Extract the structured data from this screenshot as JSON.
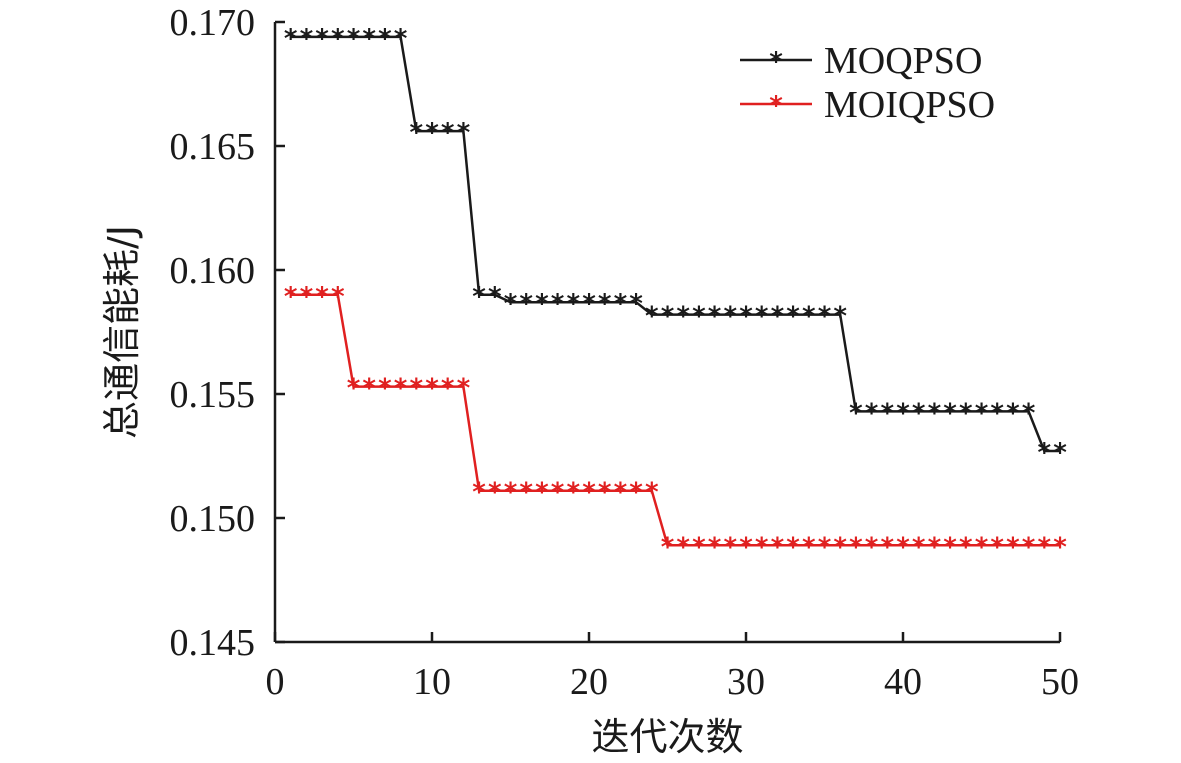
{
  "chart_data": {
    "type": "line",
    "xlabel": "迭代次数",
    "ylabel": "总通信能耗/J",
    "xlim": [
      0,
      50
    ],
    "ylim": [
      0.145,
      0.17
    ],
    "xticks": [
      "0",
      "10",
      "20",
      "30",
      "40",
      "50"
    ],
    "yticks": [
      "0.145",
      "0.150",
      "0.155",
      "0.160",
      "0.165",
      "0.170"
    ],
    "legend_position": "top-right",
    "x": [
      1,
      2,
      3,
      4,
      5,
      6,
      7,
      8,
      9,
      10,
      11,
      12,
      13,
      14,
      15,
      16,
      17,
      18,
      19,
      20,
      21,
      22,
      23,
      24,
      25,
      26,
      27,
      28,
      29,
      30,
      31,
      32,
      33,
      34,
      35,
      36,
      37,
      38,
      39,
      40,
      41,
      42,
      43,
      44,
      45,
      46,
      47,
      48,
      49,
      50
    ],
    "series": [
      {
        "name": "MOQPSO",
        "color": "#1a1a1a",
        "values": [
          0.1694,
          0.1694,
          0.1694,
          0.1694,
          0.1694,
          0.1694,
          0.1694,
          0.1694,
          0.1656,
          0.1656,
          0.1656,
          0.1656,
          0.159,
          0.159,
          0.1587,
          0.1587,
          0.1587,
          0.1587,
          0.1587,
          0.1587,
          0.1587,
          0.1587,
          0.1587,
          0.1582,
          0.1582,
          0.1582,
          0.1582,
          0.1582,
          0.1582,
          0.1582,
          0.1582,
          0.1582,
          0.1582,
          0.1582,
          0.1582,
          0.1582,
          0.1543,
          0.1543,
          0.1543,
          0.1543,
          0.1543,
          0.1543,
          0.1543,
          0.1543,
          0.1543,
          0.1543,
          0.1543,
          0.1543,
          0.1527,
          0.1527
        ]
      },
      {
        "name": "MOIQPSO",
        "color": "#e02020",
        "values": [
          0.159,
          0.159,
          0.159,
          0.159,
          0.1553,
          0.1553,
          0.1553,
          0.1553,
          0.1553,
          0.1553,
          0.1553,
          0.1553,
          0.1511,
          0.1511,
          0.1511,
          0.1511,
          0.1511,
          0.1511,
          0.1511,
          0.1511,
          0.1511,
          0.1511,
          0.1511,
          0.1511,
          0.1489,
          0.1489,
          0.1489,
          0.1489,
          0.1489,
          0.1489,
          0.1489,
          0.1489,
          0.1489,
          0.1489,
          0.1489,
          0.1489,
          0.1489,
          0.1489,
          0.1489,
          0.1489,
          0.1489,
          0.1489,
          0.1489,
          0.1489,
          0.1489,
          0.1489,
          0.1489,
          0.1489,
          0.1489,
          0.1489
        ]
      }
    ]
  }
}
